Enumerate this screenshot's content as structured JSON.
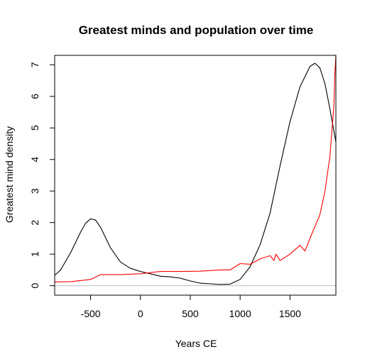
{
  "chart_data": {
    "type": "line",
    "title": "Greatest minds and population over time",
    "xlabel": "Years CE",
    "ylabel": "Greatest mind density",
    "xlim": [
      -860,
      1960
    ],
    "ylim": [
      -0.3,
      7.3
    ],
    "x_ticks": [
      -500,
      0,
      500,
      1000,
      1500
    ],
    "y_ticks": [
      0,
      1,
      2,
      3,
      4,
      5,
      6,
      7
    ],
    "grid": false,
    "zero_line_color": "#bebebe",
    "series": [
      {
        "color": "#000000",
        "points": [
          [
            -860,
            0.33
          ],
          [
            -800,
            0.5
          ],
          [
            -700,
            1.05
          ],
          [
            -600,
            1.7
          ],
          [
            -550,
            1.98
          ],
          [
            -500,
            2.12
          ],
          [
            -450,
            2.08
          ],
          [
            -400,
            1.85
          ],
          [
            -300,
            1.2
          ],
          [
            -200,
            0.75
          ],
          [
            -100,
            0.55
          ],
          [
            0,
            0.45
          ],
          [
            100,
            0.38
          ],
          [
            200,
            0.3
          ],
          [
            300,
            0.28
          ],
          [
            400,
            0.24
          ],
          [
            500,
            0.15
          ],
          [
            600,
            0.08
          ],
          [
            700,
            0.06
          ],
          [
            800,
            0.04
          ],
          [
            900,
            0.05
          ],
          [
            1000,
            0.2
          ],
          [
            1100,
            0.6
          ],
          [
            1200,
            1.3
          ],
          [
            1300,
            2.3
          ],
          [
            1400,
            3.8
          ],
          [
            1500,
            5.2
          ],
          [
            1600,
            6.3
          ],
          [
            1700,
            6.95
          ],
          [
            1750,
            7.05
          ],
          [
            1800,
            6.9
          ],
          [
            1850,
            6.4
          ],
          [
            1900,
            5.6
          ],
          [
            1940,
            4.9
          ],
          [
            1960,
            4.55
          ]
        ]
      },
      {
        "color": "#ff0000",
        "points": [
          [
            -860,
            0.12
          ],
          [
            -700,
            0.13
          ],
          [
            -500,
            0.2
          ],
          [
            -400,
            0.35
          ],
          [
            -200,
            0.35
          ],
          [
            0,
            0.38
          ],
          [
            200,
            0.45
          ],
          [
            400,
            0.45
          ],
          [
            600,
            0.46
          ],
          [
            800,
            0.5
          ],
          [
            900,
            0.5
          ],
          [
            1000,
            0.7
          ],
          [
            1100,
            0.68
          ],
          [
            1200,
            0.85
          ],
          [
            1300,
            0.95
          ],
          [
            1340,
            0.8
          ],
          [
            1360,
            1.0
          ],
          [
            1400,
            0.8
          ],
          [
            1500,
            1.0
          ],
          [
            1600,
            1.28
          ],
          [
            1650,
            1.1
          ],
          [
            1700,
            1.5
          ],
          [
            1800,
            2.25
          ],
          [
            1850,
            3.0
          ],
          [
            1900,
            4.1
          ],
          [
            1940,
            5.7
          ],
          [
            1950,
            6.75
          ],
          [
            1960,
            7.3
          ]
        ]
      }
    ]
  }
}
